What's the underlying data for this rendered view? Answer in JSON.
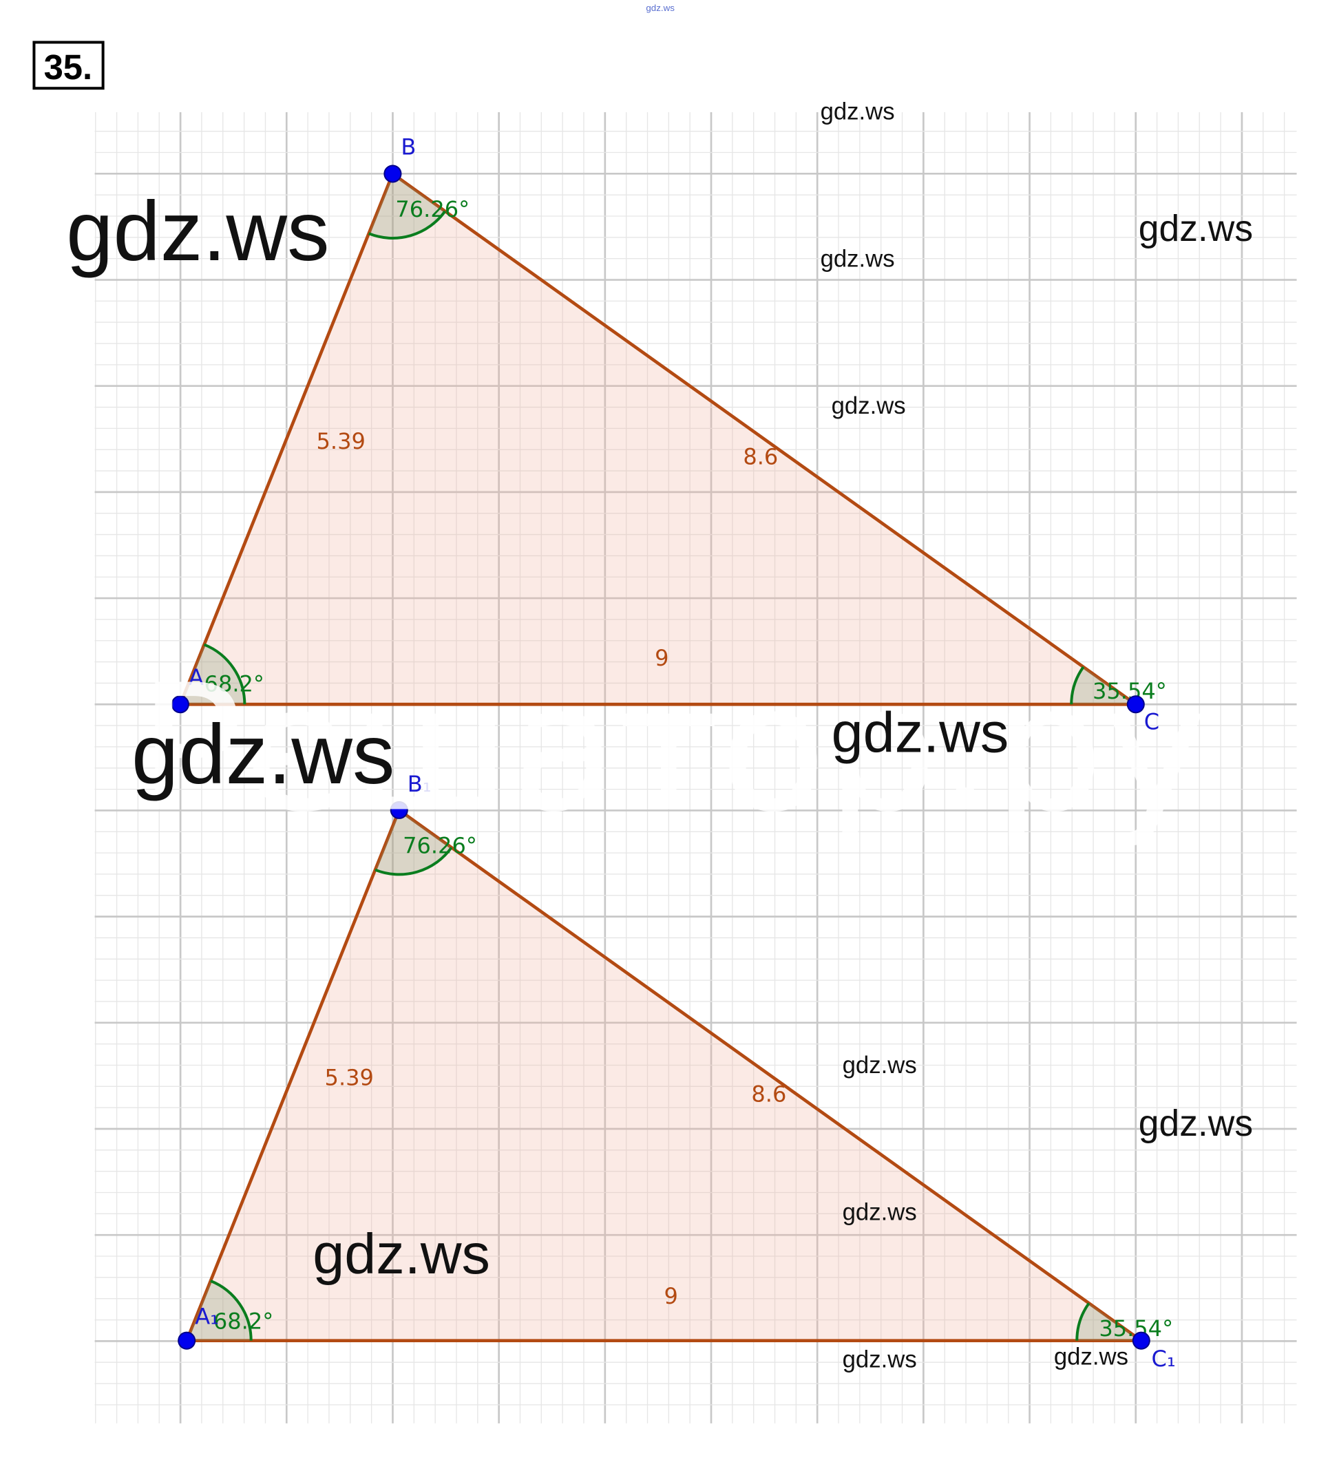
{
  "problem_number": "35.",
  "header_watermark": "gdz.ws",
  "watermarks": [
    "gdz.ws",
    "gdz.ws",
    "gdz.ws",
    "gdz.ws",
    "gdz.ws",
    "gdz.ws",
    "gdz.ws",
    "gdz.ws",
    "gdz.ws",
    "gdz.ws",
    "gdz.ws",
    "gdz.ws",
    "gdz.ws"
  ],
  "background_watermark": "Решатор.ру",
  "triangles": [
    {
      "vertices": [
        "A",
        "B",
        "C"
      ],
      "sides": {
        "AB": "5.39",
        "BC": "8.6",
        "AC": "9"
      },
      "angles": {
        "A": "68.2°",
        "B": "76.26°",
        "C": "35.54°"
      }
    },
    {
      "vertices": [
        "A₁",
        "B₁",
        "C₁"
      ],
      "sides": {
        "AB": "5.39",
        "BC": "8.6",
        "AC": "9"
      },
      "angles": {
        "A": "68.2°",
        "B": "76.26°",
        "C": "35.54°"
      }
    }
  ]
}
